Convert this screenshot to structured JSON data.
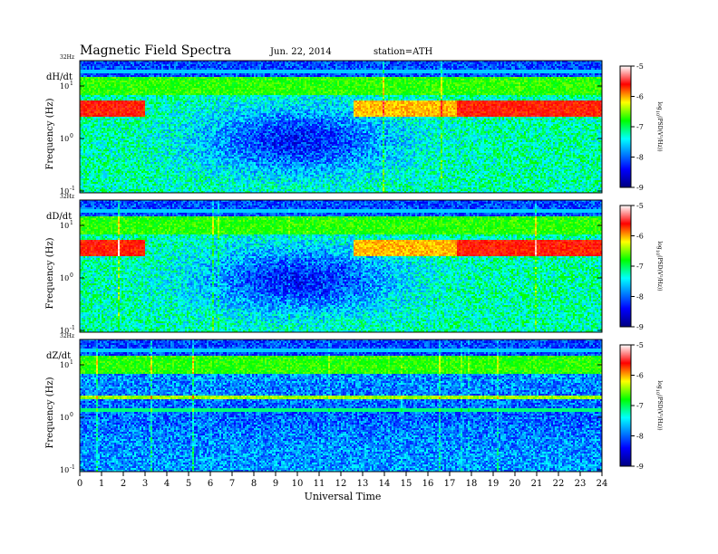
{
  "chart_data": {
    "type": "heatmap",
    "title": "Magnetic Field Spectra",
    "date": "Jun. 22, 2014",
    "station": "station=ATH",
    "xlabel": "Universal Time",
    "x_ticks": [
      0,
      1,
      2,
      3,
      4,
      5,
      6,
      7,
      8,
      9,
      10,
      11,
      12,
      13,
      14,
      15,
      16,
      17,
      18,
      19,
      20,
      21,
      22,
      23,
      24
    ],
    "xlim": [
      0,
      24
    ],
    "ylabel": "Frequency (Hz)",
    "top_freq_label": "32Hz",
    "y_tick_labels": [
      "10",
      "10",
      "10"
    ],
    "y_tick_exponents": [
      "1",
      "0",
      "-1"
    ],
    "yscale": "log",
    "colorbar": {
      "label_main": "log",
      "label_sub": "10",
      "label_rest": "(PSD(V²/Hz))",
      "ticks": [
        "-5",
        "-6",
        "-7",
        "-8",
        "-9"
      ],
      "range": [
        -9,
        -5
      ],
      "colors": [
        "#000080",
        "#0000ff",
        "#00ffff",
        "#00ff00",
        "#ffff00",
        "#ff0000",
        "#ffffff"
      ]
    },
    "panels": [
      {
        "name": "dH/dt"
      },
      {
        "name": "dD/dt"
      },
      {
        "name": "dZ/dt"
      }
    ]
  }
}
